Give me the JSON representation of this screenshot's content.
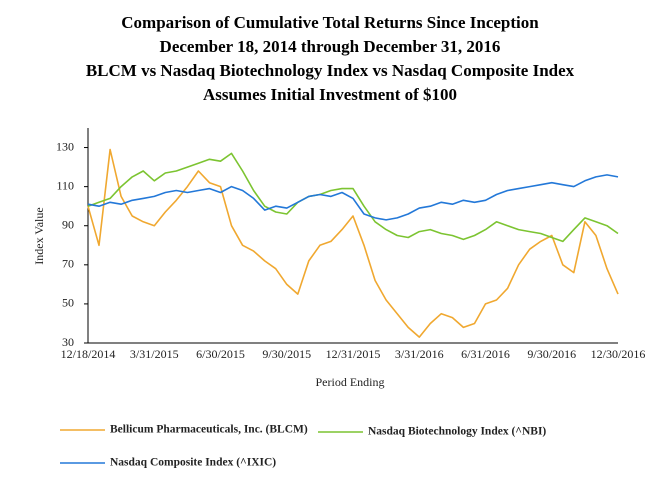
{
  "chart_data": {
    "type": "line",
    "title": "Comparison of Cumulative Total Returns Since Inception",
    "subtitle_lines": [
      "December 18, 2014 through December 31, 2016",
      "BLCM vs Nasdaq Biotechnology Index vs Nasdaq Composite Index",
      "Assumes Initial Investment of $100"
    ],
    "y_label": "Index Value",
    "x_label": "Period Ending",
    "categories": [
      "12/18/2014",
      null,
      null,
      null,
      null,
      null,
      "3/31/2015",
      null,
      null,
      null,
      null,
      null,
      "6/30/2015",
      null,
      null,
      null,
      null,
      null,
      "9/30/2015",
      null,
      null,
      null,
      null,
      null,
      "12/31/2015",
      null,
      null,
      null,
      null,
      null,
      "3/31/2016",
      null,
      null,
      null,
      null,
      null,
      "6/31/2016",
      null,
      null,
      null,
      null,
      null,
      "9/30/2016",
      null,
      null,
      null,
      null,
      null,
      "12/30/2016"
    ],
    "series": [
      {
        "name": "Bellicum Pharmaceuticals, Inc. (BLCM)",
        "color": "#f0a830",
        "values": [
          100,
          80,
          129,
          105,
          95,
          92,
          90,
          97,
          103,
          110,
          118,
          112,
          110,
          90,
          80,
          77,
          72,
          68,
          60,
          55,
          72,
          80,
          82,
          88,
          95,
          80,
          62,
          52,
          45,
          38,
          33,
          40,
          45,
          43,
          38,
          40,
          50,
          52,
          58,
          70,
          78,
          82,
          85,
          70,
          66,
          92,
          85,
          68,
          55
        ]
      },
      {
        "name": "Nasdaq Biotechnology Index (^NBI)",
        "color": "#7cc431",
        "values": [
          100,
          102,
          104,
          110,
          115,
          118,
          113,
          117,
          118,
          120,
          122,
          124,
          123,
          127,
          118,
          108,
          100,
          97,
          96,
          102,
          105,
          106,
          108,
          109,
          109,
          100,
          92,
          88,
          85,
          84,
          87,
          88,
          86,
          85,
          83,
          85,
          88,
          92,
          90,
          88,
          87,
          86,
          84,
          82,
          88,
          94,
          92,
          90,
          86
        ]
      },
      {
        "name": "Nasdaq Composite Index (^IXIC)",
        "color": "#2378d8",
        "values": [
          101,
          100,
          102,
          101,
          103,
          104,
          105,
          107,
          108,
          107,
          108,
          109,
          107,
          110,
          108,
          104,
          98,
          100,
          99,
          102,
          105,
          106,
          105,
          107,
          104,
          96,
          94,
          93,
          94,
          96,
          99,
          100,
          102,
          101,
          103,
          102,
          103,
          106,
          108,
          109,
          110,
          111,
          112,
          111,
          110,
          113,
          115,
          116,
          115
        ]
      }
    ],
    "ylim": [
      30,
      140
    ],
    "yticks": [
      30,
      50,
      70,
      90,
      110,
      130
    ],
    "grid": false
  }
}
